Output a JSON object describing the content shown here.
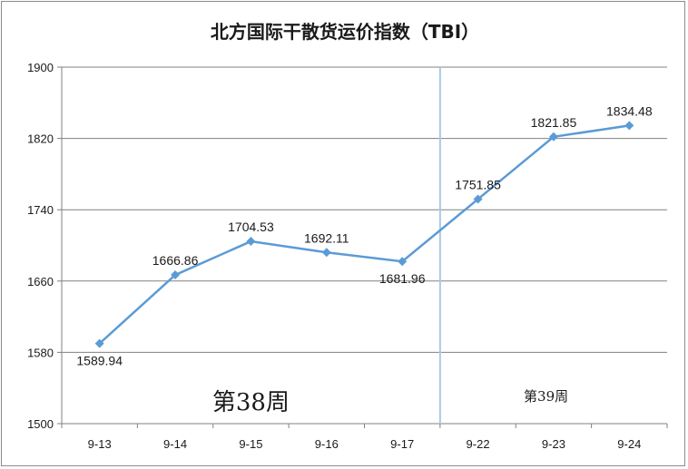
{
  "chart_data": {
    "type": "line",
    "title": "北方国际干散货运价指数（TBI）",
    "categories": [
      "9-13",
      "9-14",
      "9-15",
      "9-16",
      "9-17",
      "9-22",
      "9-23",
      "9-24"
    ],
    "series": [
      {
        "values": [
          1589.94,
          1666.86,
          1704.53,
          1692.11,
          1681.96,
          1751.85,
          1821.85,
          1834.48
        ],
        "data_labels": [
          "1589.94",
          "1666.86",
          "1704.53",
          "1692.11",
          "1681.96",
          "1751.85",
          "1821.85",
          "1834.48"
        ]
      }
    ],
    "ylim": [
      1500,
      1900
    ],
    "yticks": [
      1500,
      1580,
      1660,
      1740,
      1820,
      1900
    ],
    "grid": true,
    "legend": "none",
    "week_divider_after_category": "9-17",
    "annotations": [
      "第38周",
      "第39周"
    ],
    "colors": {
      "line": "#5b9bd5",
      "marker": "#5b9bd5",
      "divider": "#a9c9e8",
      "grid": "#808080"
    }
  }
}
